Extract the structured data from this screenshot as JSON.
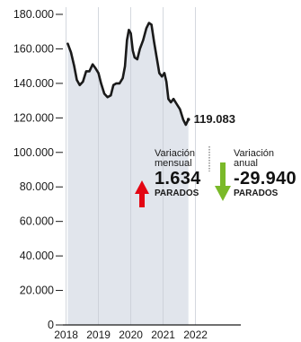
{
  "chart_data": {
    "type": "area",
    "ylim": [
      0,
      180000
    ],
    "xlim": [
      2017.9,
      2023.4
    ],
    "y_ticks": [
      {
        "value": 0,
        "label": "0"
      },
      {
        "value": 20000,
        "label": "20.000"
      },
      {
        "value": 40000,
        "label": "40.000"
      },
      {
        "value": 60000,
        "label": "60.000"
      },
      {
        "value": 80000,
        "label": "80.000"
      },
      {
        "value": 100000,
        "label": "100.000"
      },
      {
        "value": 120000,
        "label": "120.000"
      },
      {
        "value": 140000,
        "label": "140.000"
      },
      {
        "value": 160000,
        "label": "160.000"
      },
      {
        "value": 180000,
        "label": "180.000"
      }
    ],
    "x_ticks": [
      {
        "value": 2018,
        "label": "2018"
      },
      {
        "value": 2019,
        "label": "2019"
      },
      {
        "value": 2020,
        "label": "2020"
      },
      {
        "value": 2021,
        "label": "2021"
      },
      {
        "value": 2022,
        "label": "2022"
      }
    ],
    "series": [
      {
        "points": [
          [
            2018.05,
            163000
          ],
          [
            2018.15,
            158000
          ],
          [
            2018.25,
            150000
          ],
          [
            2018.33,
            142000
          ],
          [
            2018.42,
            139000
          ],
          [
            2018.52,
            141000
          ],
          [
            2018.62,
            147000
          ],
          [
            2018.72,
            147000
          ],
          [
            2018.82,
            151000
          ],
          [
            2018.9,
            149000
          ],
          [
            2019.0,
            146000
          ],
          [
            2019.08,
            140000
          ],
          [
            2019.18,
            134000
          ],
          [
            2019.28,
            132000
          ],
          [
            2019.38,
            133000
          ],
          [
            2019.46,
            139000
          ],
          [
            2019.55,
            140000
          ],
          [
            2019.65,
            140000
          ],
          [
            2019.75,
            143000
          ],
          [
            2019.82,
            150000
          ],
          [
            2019.88,
            165000
          ],
          [
            2019.94,
            171000
          ],
          [
            2020.0,
            169000
          ],
          [
            2020.06,
            159000
          ],
          [
            2020.12,
            155000
          ],
          [
            2020.2,
            154000
          ],
          [
            2020.28,
            160000
          ],
          [
            2020.38,
            165000
          ],
          [
            2020.48,
            172000
          ],
          [
            2020.56,
            175000
          ],
          [
            2020.64,
            174000
          ],
          [
            2020.72,
            164000
          ],
          [
            2020.8,
            155000
          ],
          [
            2020.88,
            146000
          ],
          [
            2020.96,
            144000
          ],
          [
            2021.04,
            146000
          ],
          [
            2021.1,
            141000
          ],
          [
            2021.16,
            131000
          ],
          [
            2021.24,
            129000
          ],
          [
            2021.32,
            131000
          ],
          [
            2021.42,
            128000
          ],
          [
            2021.52,
            125000
          ],
          [
            2021.62,
            119000
          ],
          [
            2021.7,
            116000
          ],
          [
            2021.78,
            119083
          ]
        ]
      }
    ],
    "end_label": "119.083",
    "annotations": {
      "monthly": {
        "caption_line1": "Variación",
        "caption_line2": "mensual",
        "value": "1.634",
        "unit": "PARADOS",
        "direction": "up",
        "color": "#e30613"
      },
      "annual": {
        "caption_line1": "Variación",
        "caption_line2": "anual",
        "value": "-29.940",
        "unit": "PARADOS",
        "direction": "down",
        "color": "#7ab929"
      }
    },
    "colors": {
      "area": "#e1e5ec",
      "line": "#1a1a1a",
      "grid": "#ffffff"
    }
  }
}
